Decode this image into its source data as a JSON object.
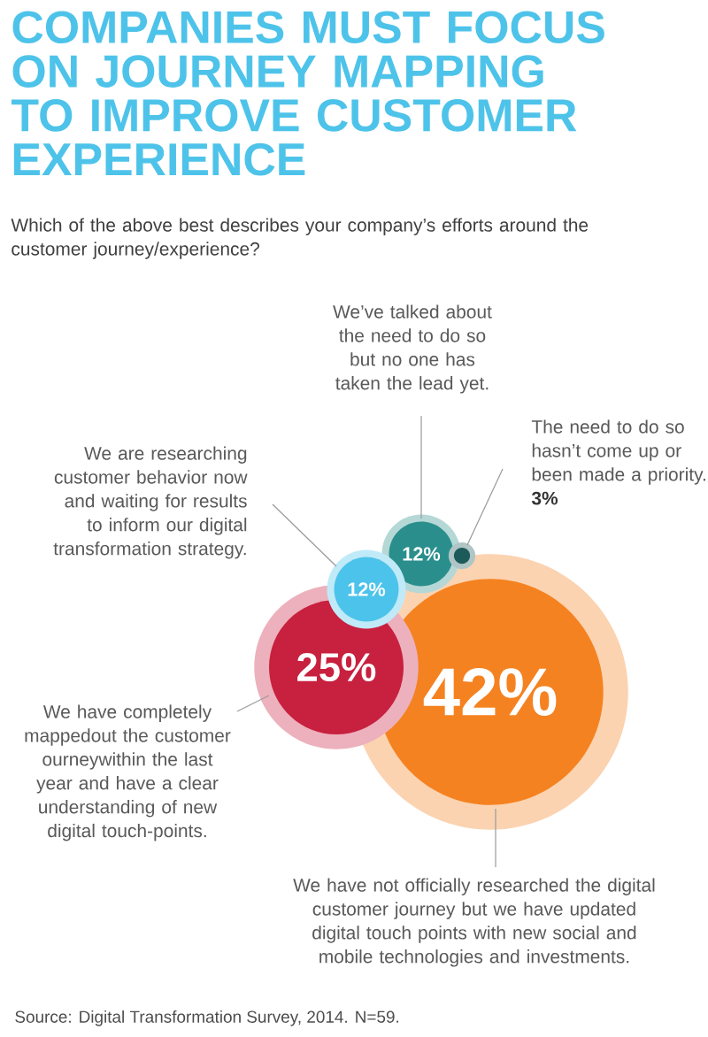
{
  "chart_data": {
    "type": "other",
    "title": "COMPANIES MUST FOCUS ON JOURNEY MAPPING TO IMPROVE CUSTOMER EXPERIENCE",
    "subtitle": "Which of the above best describes your company’s efforts around the customer journey/experience?",
    "categories": [
      "We’ve talked about the need to do so but no one has taken the lead yet.",
      "The need to do so hasn’t come up or been made a priority.",
      "We are researching customer behavior now and waiting for results to inform our digital transformation strategy.",
      "We have completely mappedout the customer ourneywithin the last year and have a clear understanding of new digital touch-points.",
      "We have not officially researched the digital customer journey but we have updated digital touch points with new social and mobile technologies and investments."
    ],
    "values": [
      12,
      3,
      12,
      25,
      42
    ],
    "value_labels": [
      "12%",
      "3%",
      "12%",
      "25%",
      "42%"
    ],
    "colors": [
      "#2a8f8c",
      "#1d5a5a",
      "#4cc3ea",
      "#c8203f",
      "#f58220"
    ],
    "annotations": [
      "Source: Digital Transformation Survey, 2014. N=59."
    ]
  }
}
